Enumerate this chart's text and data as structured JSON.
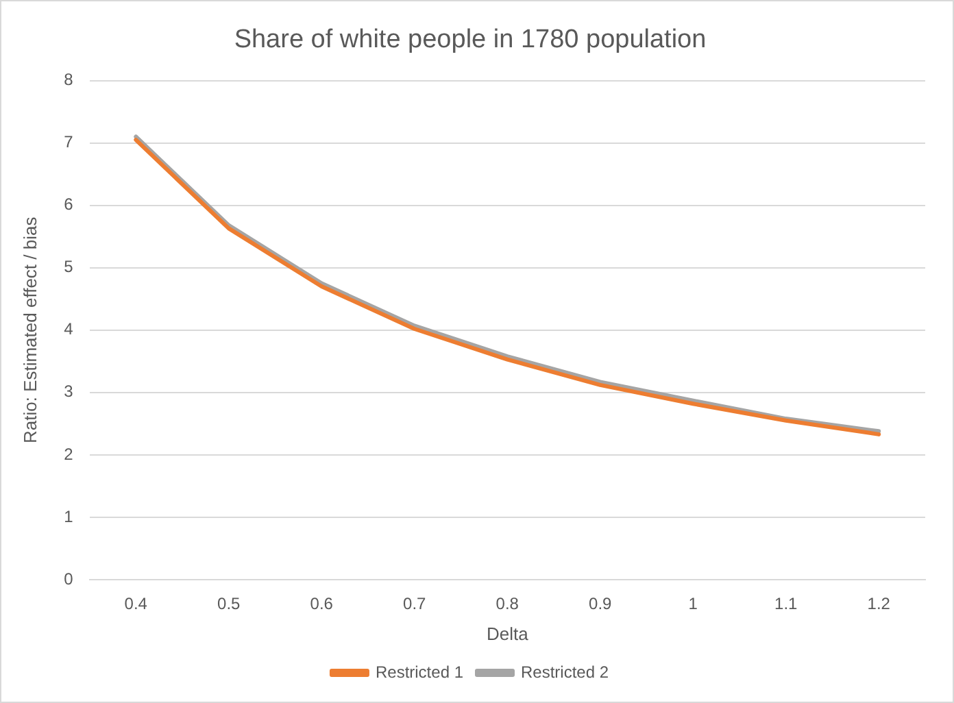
{
  "chart_data": {
    "type": "line",
    "title": "Share of white people in 1780 population",
    "xlabel": "Delta",
    "ylabel": "Ratio: Estimated effect / bias",
    "categories": [
      "0.4",
      "0.5",
      "0.6",
      "0.7",
      "0.8",
      "0.9",
      "1",
      "1.1",
      "1.2"
    ],
    "series": [
      {
        "name": "Restricted 1",
        "color": "#ed7d31",
        "values": [
          7.05,
          5.63,
          4.7,
          4.02,
          3.53,
          3.12,
          2.82,
          2.55,
          2.33
        ]
      },
      {
        "name": "Restricted 2",
        "color": "#a5a5a5",
        "values": [
          7.1,
          5.68,
          4.75,
          4.07,
          3.58,
          3.17,
          2.87,
          2.58,
          2.38
        ]
      }
    ],
    "ylim": [
      0,
      8
    ],
    "yticks": [
      0,
      1,
      2,
      3,
      4,
      5,
      6,
      7,
      8
    ],
    "grid": "y",
    "legend": "bottom",
    "marker": "none",
    "line_style": "solid"
  }
}
